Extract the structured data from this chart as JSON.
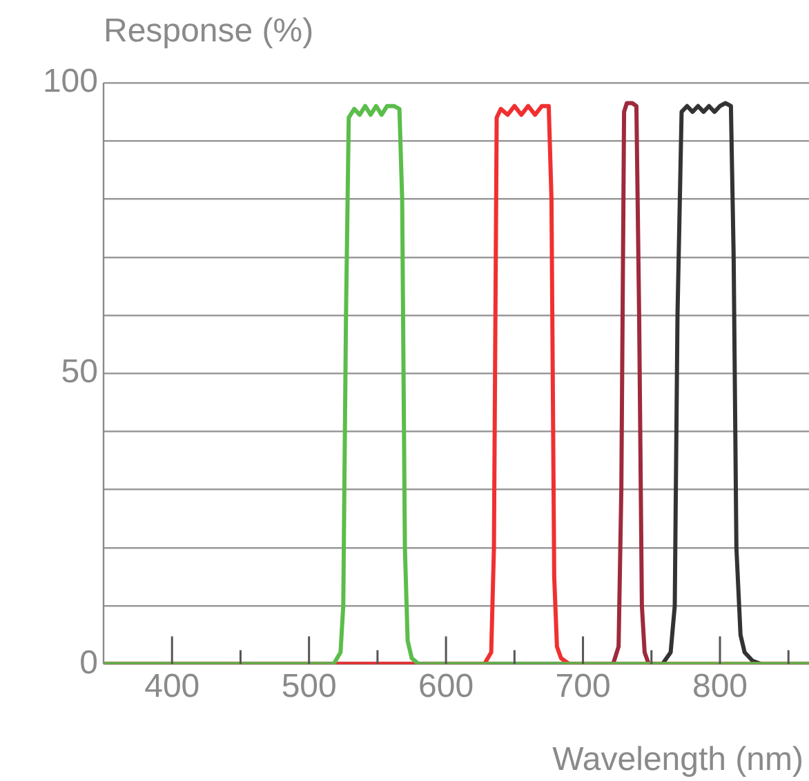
{
  "chart_data": {
    "type": "line",
    "xlabel": "Wavelength (nm)",
    "ylabel": "Response (%)",
    "xlim": [
      350,
      865
    ],
    "xticks": [
      400,
      {
        "value": 450,
        "label": null
      },
      500,
      {
        "value": 550,
        "label": null
      },
      600,
      {
        "value": 650,
        "label": null
      },
      700,
      {
        "value": 750,
        "label": null
      },
      800,
      {
        "value": 850,
        "label": null
      }
    ],
    "ylim": [
      0,
      100
    ],
    "yticks": [
      0,
      {
        "value": 10,
        "label": null
      },
      {
        "value": 20,
        "label": null
      },
      {
        "value": 30,
        "label": null
      },
      {
        "value": 40,
        "label": null
      },
      50,
      {
        "value": 60,
        "label": null
      },
      {
        "value": 70,
        "label": null
      },
      {
        "value": 80,
        "label": null
      },
      {
        "value": 90,
        "label": null
      },
      100
    ],
    "grid": "y",
    "legend": false,
    "marker": "none",
    "line_style": "solid",
    "series": [
      {
        "color": "#5bbd4b",
        "x": [
          350,
          518,
          523,
          525,
          527,
          529,
          533,
          537,
          541,
          545,
          549,
          553,
          557,
          562,
          566,
          568,
          570,
          572,
          575,
          580,
          865
        ],
        "values": [
          0,
          0,
          2,
          10,
          60,
          94,
          95.5,
          94.5,
          96,
          94.5,
          96,
          94.5,
          96,
          96,
          95.5,
          80,
          20,
          4,
          1,
          0,
          0
        ]
      },
      {
        "color": "#f03030",
        "x": [
          350,
          628,
          633,
          635,
          637,
          640,
          645,
          650,
          655,
          660,
          665,
          670,
          675,
          677,
          679,
          681,
          684,
          690,
          865
        ],
        "values": [
          0,
          0,
          2,
          20,
          94,
          95.5,
          94.5,
          96,
          94.5,
          96,
          94.5,
          96,
          96,
          80,
          15,
          3,
          1,
          0,
          0
        ]
      },
      {
        "color": "#9e2a3c",
        "x": [
          350,
          722,
          726,
          728,
          730,
          732,
          736,
          739,
          741,
          743,
          745,
          748,
          865
        ],
        "values": [
          0,
          0,
          3,
          30,
          95,
          96.5,
          96.5,
          96,
          60,
          10,
          2,
          0,
          0
        ]
      },
      {
        "color": "#333333",
        "x": [
          350,
          758,
          764,
          767,
          769,
          772,
          776,
          780,
          784,
          788,
          792,
          796,
          800,
          804,
          808,
          810,
          812,
          815,
          818,
          824,
          830,
          865
        ],
        "values": [
          0,
          0,
          2,
          10,
          60,
          95,
          96,
          95,
          96,
          95,
          96,
          95,
          96,
          96.5,
          96,
          70,
          20,
          5,
          2,
          0.5,
          0,
          0
        ]
      }
    ]
  }
}
